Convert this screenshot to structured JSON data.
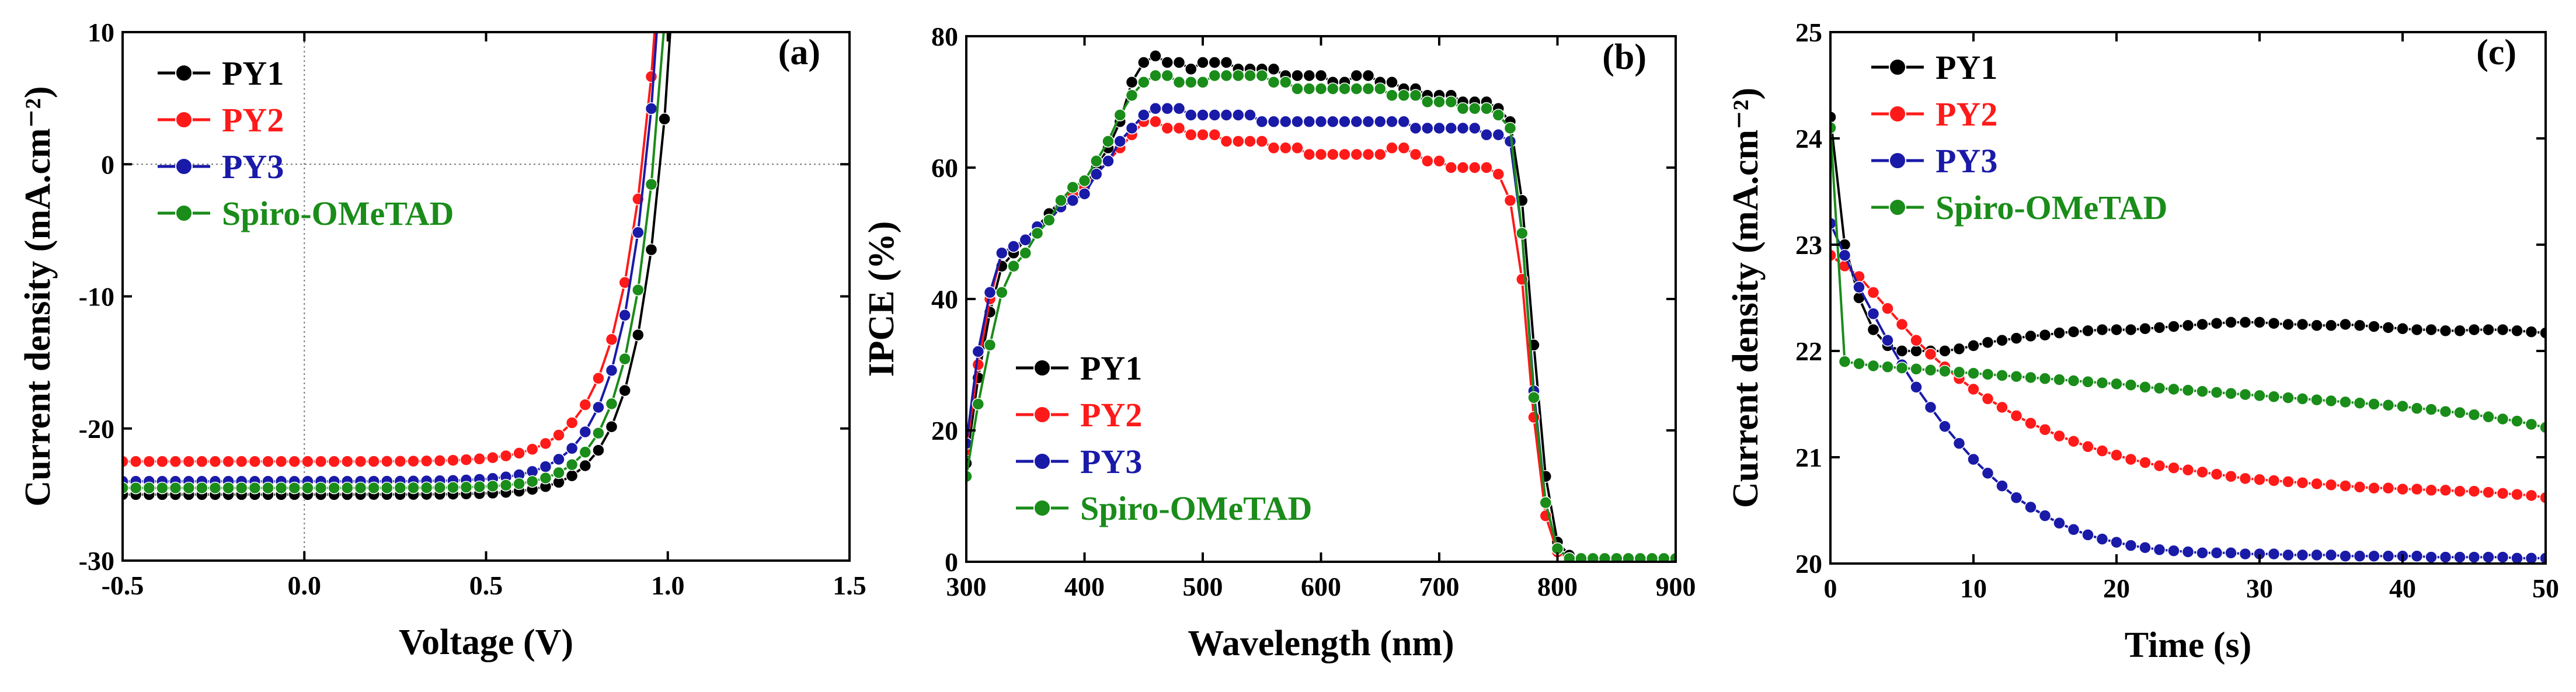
{
  "figure": {
    "colors": {
      "PY1": "#000000",
      "PY2": "#ff1a1a",
      "PY3": "#1a1aa8",
      "Spiro-OMeTAD": "#1a8c1a"
    }
  },
  "chart_data": [
    {
      "panel": "(a)",
      "type": "line",
      "xlabel": "Voltage (V)",
      "ylabel": "Current density (mA.cm⁻²)",
      "xlim": [
        -0.5,
        1.5
      ],
      "ylim": [
        -30,
        10
      ],
      "xticks": [
        -0.5,
        0.0,
        0.5,
        1.0,
        1.5
      ],
      "xtick_labels": [
        "-0.5",
        "0.0",
        "0.5",
        "1.0",
        "1.5"
      ],
      "yticks": [
        -30,
        -20,
        -10,
        0,
        10
      ],
      "ytick_labels": [
        "-30",
        "-20",
        "-10",
        "0",
        "10"
      ],
      "guide_lines": {
        "x": 0,
        "y": 0
      },
      "legend": {
        "position": "top-left",
        "entries": [
          "PY1",
          "PY2",
          "PY3",
          "Spiro-OMeTAD"
        ]
      },
      "series": [
        {
          "name": "PY1",
          "jsc": -25.0,
          "voc": 0.98,
          "vt": 0.085
        },
        {
          "name": "PY2",
          "jsc": -22.5,
          "voc": 0.93,
          "vt": 0.095
        },
        {
          "name": "PY3",
          "jsc": -24.0,
          "voc": 0.94,
          "vt": 0.09
        },
        {
          "name": "Spiro-OMeTAD",
          "jsc": -24.5,
          "voc": 0.96,
          "vt": 0.085
        }
      ]
    },
    {
      "panel": "(b)",
      "type": "line",
      "xlabel": "Wavelength (nm)",
      "ylabel": "IPCE (%)",
      "xlim": [
        300,
        900
      ],
      "ylim": [
        0,
        80
      ],
      "xticks": [
        300,
        400,
        500,
        600,
        700,
        800,
        900
      ],
      "xtick_labels": [
        "300",
        "400",
        "500",
        "600",
        "700",
        "800",
        "900"
      ],
      "yticks": [
        0,
        20,
        40,
        60,
        80
      ],
      "ytick_labels": [
        "0",
        "20",
        "40",
        "60",
        "80"
      ],
      "legend": {
        "position": "bottom-left",
        "entries": [
          "PY1",
          "PY2",
          "PY3",
          "Spiro-OMeTAD"
        ]
      },
      "x": [
        300,
        310,
        320,
        330,
        340,
        350,
        360,
        370,
        380,
        390,
        400,
        410,
        420,
        430,
        440,
        450,
        460,
        470,
        480,
        490,
        500,
        510,
        520,
        530,
        540,
        550,
        560,
        570,
        580,
        590,
        600,
        610,
        620,
        630,
        640,
        650,
        660,
        670,
        680,
        690,
        700,
        710,
        720,
        730,
        740,
        750,
        760,
        770,
        780,
        790,
        800,
        810,
        820,
        830,
        840,
        850,
        860,
        870,
        880,
        890,
        900
      ],
      "series": [
        {
          "name": "PY1",
          "values": [
            15,
            28,
            38,
            45,
            47,
            49,
            51,
            53,
            55,
            56,
            57,
            60,
            63,
            67,
            73,
            76,
            77,
            76,
            76,
            75,
            76,
            76,
            76,
            75,
            75,
            75,
            75,
            74,
            74,
            74,
            74,
            73,
            73,
            74,
            74,
            73,
            73,
            72,
            72,
            71,
            71,
            71,
            70,
            70,
            70,
            69,
            67,
            55,
            33,
            13,
            3,
            1,
            0.5,
            0.5,
            0.5,
            0.5,
            0.5,
            0.5,
            0.5,
            0.5,
            0.5
          ]
        },
        {
          "name": "PY2",
          "values": [
            17,
            30,
            40,
            47,
            48,
            49,
            51,
            52,
            54,
            56,
            57,
            59,
            61,
            63,
            65,
            67,
            67,
            66,
            66,
            65,
            65,
            65,
            64,
            64,
            64,
            64,
            63,
            63,
            63,
            62,
            62,
            62,
            62,
            62,
            62,
            62,
            63,
            63,
            62,
            61,
            61,
            60,
            60,
            60,
            60,
            59,
            55,
            43,
            22,
            7,
            1.5,
            0.5,
            0.5,
            0.5,
            0.5,
            0.5,
            0.5,
            0.5,
            0.5,
            0.5,
            0.5
          ]
        },
        {
          "name": "PY3",
          "values": [
            18,
            32,
            41,
            47,
            48,
            49,
            51,
            52,
            54,
            55,
            56,
            59,
            61,
            64,
            66,
            68,
            69,
            69,
            69,
            68,
            68,
            68,
            68,
            68,
            68,
            67,
            67,
            67,
            67,
            67,
            67,
            67,
            67,
            67,
            67,
            67,
            67,
            67,
            66,
            66,
            66,
            66,
            66,
            66,
            65,
            65,
            64,
            50,
            26,
            9,
            2,
            0.5,
            0.5,
            0.5,
            0.5,
            0.5,
            0.5,
            0.5,
            0.5,
            0.5,
            0.5
          ]
        },
        {
          "name": "Spiro-OMeTAD",
          "values": [
            13,
            24,
            33,
            41,
            45,
            47,
            50,
            52,
            55,
            57,
            58,
            61,
            64,
            68,
            71,
            73,
            74,
            74,
            73,
            73,
            73,
            74,
            74,
            74,
            74,
            74,
            73,
            73,
            72,
            72,
            72,
            72,
            72,
            72,
            72,
            72,
            71,
            71,
            71,
            70,
            70,
            70,
            69,
            69,
            69,
            68,
            66,
            50,
            25,
            9,
            2,
            0.5,
            0.5,
            0.5,
            0.5,
            0.5,
            0.5,
            0.5,
            0.5,
            0.5,
            0.5
          ]
        }
      ]
    },
    {
      "panel": "(c)",
      "type": "line",
      "xlabel": "Time (s)",
      "ylabel": "Current density (mA.cm⁻²)",
      "xlim": [
        0,
        50
      ],
      "ylim": [
        20,
        25
      ],
      "xticks": [
        0,
        10,
        20,
        30,
        40,
        50
      ],
      "xtick_labels": [
        "0",
        "10",
        "20",
        "30",
        "40",
        "50"
      ],
      "yticks": [
        20,
        21,
        22,
        23,
        24,
        25
      ],
      "ytick_labels": [
        "20",
        "21",
        "22",
        "23",
        "24",
        "25"
      ],
      "legend": {
        "position": "top-left",
        "entries": [
          "PY1",
          "PY2",
          "PY3",
          "Spiro-OMeTAD"
        ]
      },
      "x": [
        0,
        1,
        2,
        3,
        4,
        5,
        6,
        7,
        8,
        9,
        10,
        11,
        12,
        13,
        14,
        15,
        16,
        17,
        18,
        19,
        20,
        21,
        22,
        23,
        24,
        25,
        26,
        27,
        28,
        29,
        30,
        31,
        32,
        33,
        34,
        35,
        36,
        37,
        38,
        39,
        40,
        41,
        42,
        43,
        44,
        45,
        46,
        47,
        48,
        49,
        50
      ],
      "series": [
        {
          "name": "PY1",
          "values": [
            24.2,
            23.0,
            22.5,
            22.2,
            22.05,
            22.0,
            22.0,
            22.0,
            22.0,
            22.02,
            22.05,
            22.08,
            22.1,
            22.12,
            22.14,
            22.15,
            22.17,
            22.18,
            22.19,
            22.2,
            22.2,
            22.2,
            22.21,
            22.22,
            22.23,
            22.24,
            22.25,
            22.26,
            22.27,
            22.27,
            22.27,
            22.26,
            22.25,
            22.25,
            22.24,
            22.24,
            22.25,
            22.24,
            22.23,
            22.22,
            22.21,
            22.2,
            22.2,
            22.19,
            22.19,
            22.2,
            22.2,
            22.2,
            22.19,
            22.18,
            22.17
          ]
        },
        {
          "name": "PY2",
          "values": [
            22.9,
            22.8,
            22.7,
            22.55,
            22.4,
            22.25,
            22.1,
            21.97,
            21.85,
            21.74,
            21.64,
            21.55,
            21.47,
            21.39,
            21.32,
            21.26,
            21.2,
            21.15,
            21.1,
            21.06,
            21.02,
            20.98,
            20.95,
            20.92,
            20.9,
            20.88,
            20.86,
            20.84,
            20.82,
            20.8,
            20.79,
            20.78,
            20.77,
            20.76,
            20.75,
            20.74,
            20.73,
            20.72,
            20.71,
            20.71,
            20.7,
            20.7,
            20.69,
            20.69,
            20.68,
            20.68,
            20.67,
            20.66,
            20.65,
            20.64,
            20.62
          ]
        },
        {
          "name": "PY3",
          "values": [
            23.2,
            22.9,
            22.6,
            22.35,
            22.1,
            21.87,
            21.66,
            21.47,
            21.29,
            21.13,
            20.98,
            20.85,
            20.73,
            20.62,
            20.53,
            20.45,
            20.38,
            20.32,
            20.27,
            20.23,
            20.2,
            20.17,
            20.15,
            20.13,
            20.12,
            20.11,
            20.1,
            20.1,
            20.1,
            20.09,
            20.09,
            20.09,
            20.08,
            20.08,
            20.08,
            20.08,
            20.07,
            20.07,
            20.07,
            20.07,
            20.07,
            20.07,
            20.06,
            20.06,
            20.06,
            20.06,
            20.06,
            20.06,
            20.05,
            20.05,
            20.05
          ]
        },
        {
          "name": "Spiro-OMeTAD",
          "values": [
            24.1,
            21.9,
            21.88,
            21.86,
            21.85,
            21.84,
            21.83,
            21.82,
            21.81,
            21.8,
            21.79,
            21.78,
            21.77,
            21.76,
            21.75,
            21.74,
            21.73,
            21.72,
            21.71,
            21.7,
            21.69,
            21.68,
            21.66,
            21.65,
            21.64,
            21.63,
            21.62,
            21.61,
            21.6,
            21.59,
            21.58,
            21.57,
            21.56,
            21.55,
            21.54,
            21.53,
            21.52,
            21.51,
            21.5,
            21.49,
            21.48,
            21.46,
            21.45,
            21.43,
            21.42,
            21.4,
            21.38,
            21.36,
            21.34,
            21.31,
            21.28
          ]
        }
      ]
    }
  ]
}
